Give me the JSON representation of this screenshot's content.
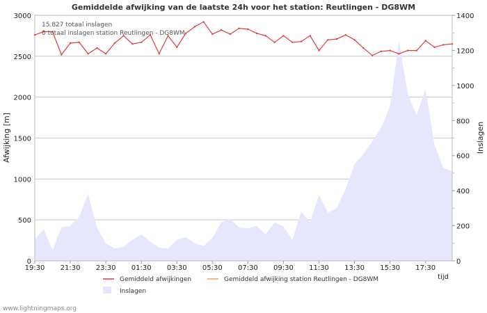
{
  "chart_data": {
    "type": "line",
    "title": "Gemiddelde afwijking van de laatste 24h voor het station: Reutlingen - DG8WM",
    "xlabel": "tijd",
    "ylabel_left": "Afwijking  [m]",
    "ylabel_right": "Inslagen",
    "ylim_left": [
      0,
      3000
    ],
    "ylim_right": [
      0,
      1400
    ],
    "yticks_left": [
      0,
      500,
      1000,
      1500,
      2000,
      2500,
      3000
    ],
    "yticks_right": [
      0,
      200,
      400,
      600,
      800,
      1000,
      1200,
      1400
    ],
    "x_ticks": [
      "19:30",
      "21:30",
      "23:30",
      "01:30",
      "03:30",
      "05:30",
      "07:30",
      "09:30",
      "11:30",
      "13:30",
      "15:30",
      "17:30"
    ],
    "x_count": 48,
    "annotations": [
      "15.827 totaal inslagen",
      "0 totaal inslagen station Reutlingen - DG8WM"
    ],
    "series": [
      {
        "name": "Gemiddeld afwijkingen",
        "color": "#e03c3c",
        "axis": "left",
        "values": [
          2760,
          2800,
          2800,
          2520,
          2660,
          2670,
          2530,
          2600,
          2530,
          2660,
          2750,
          2650,
          2670,
          2760,
          2530,
          2750,
          2610,
          2780,
          2860,
          2920,
          2770,
          2820,
          2770,
          2840,
          2830,
          2780,
          2750,
          2670,
          2750,
          2670,
          2680,
          2750,
          2570,
          2700,
          2710,
          2760,
          2700,
          2600,
          2510,
          2560,
          2570,
          2530,
          2570,
          2570,
          2690,
          2610,
          2640,
          2650
        ]
      },
      {
        "name": "Gemiddeld afwijking station Reutlingen - DG8WM",
        "color": "#f5a05a",
        "axis": "left",
        "values": []
      },
      {
        "name": "Inslagen",
        "color": "#e6e6fc",
        "axis": "right",
        "type": "area",
        "values": [
          120,
          180,
          60,
          190,
          200,
          250,
          380,
          190,
          100,
          70,
          80,
          120,
          150,
          110,
          75,
          70,
          120,
          135,
          100,
          85,
          130,
          220,
          240,
          190,
          185,
          200,
          150,
          220,
          195,
          120,
          280,
          220,
          375,
          275,
          300,
          410,
          550,
          610,
          680,
          760,
          880,
          1250,
          950,
          830,
          980,
          660,
          530,
          510
        ]
      }
    ]
  },
  "footer": "www.lightningmaps.org"
}
